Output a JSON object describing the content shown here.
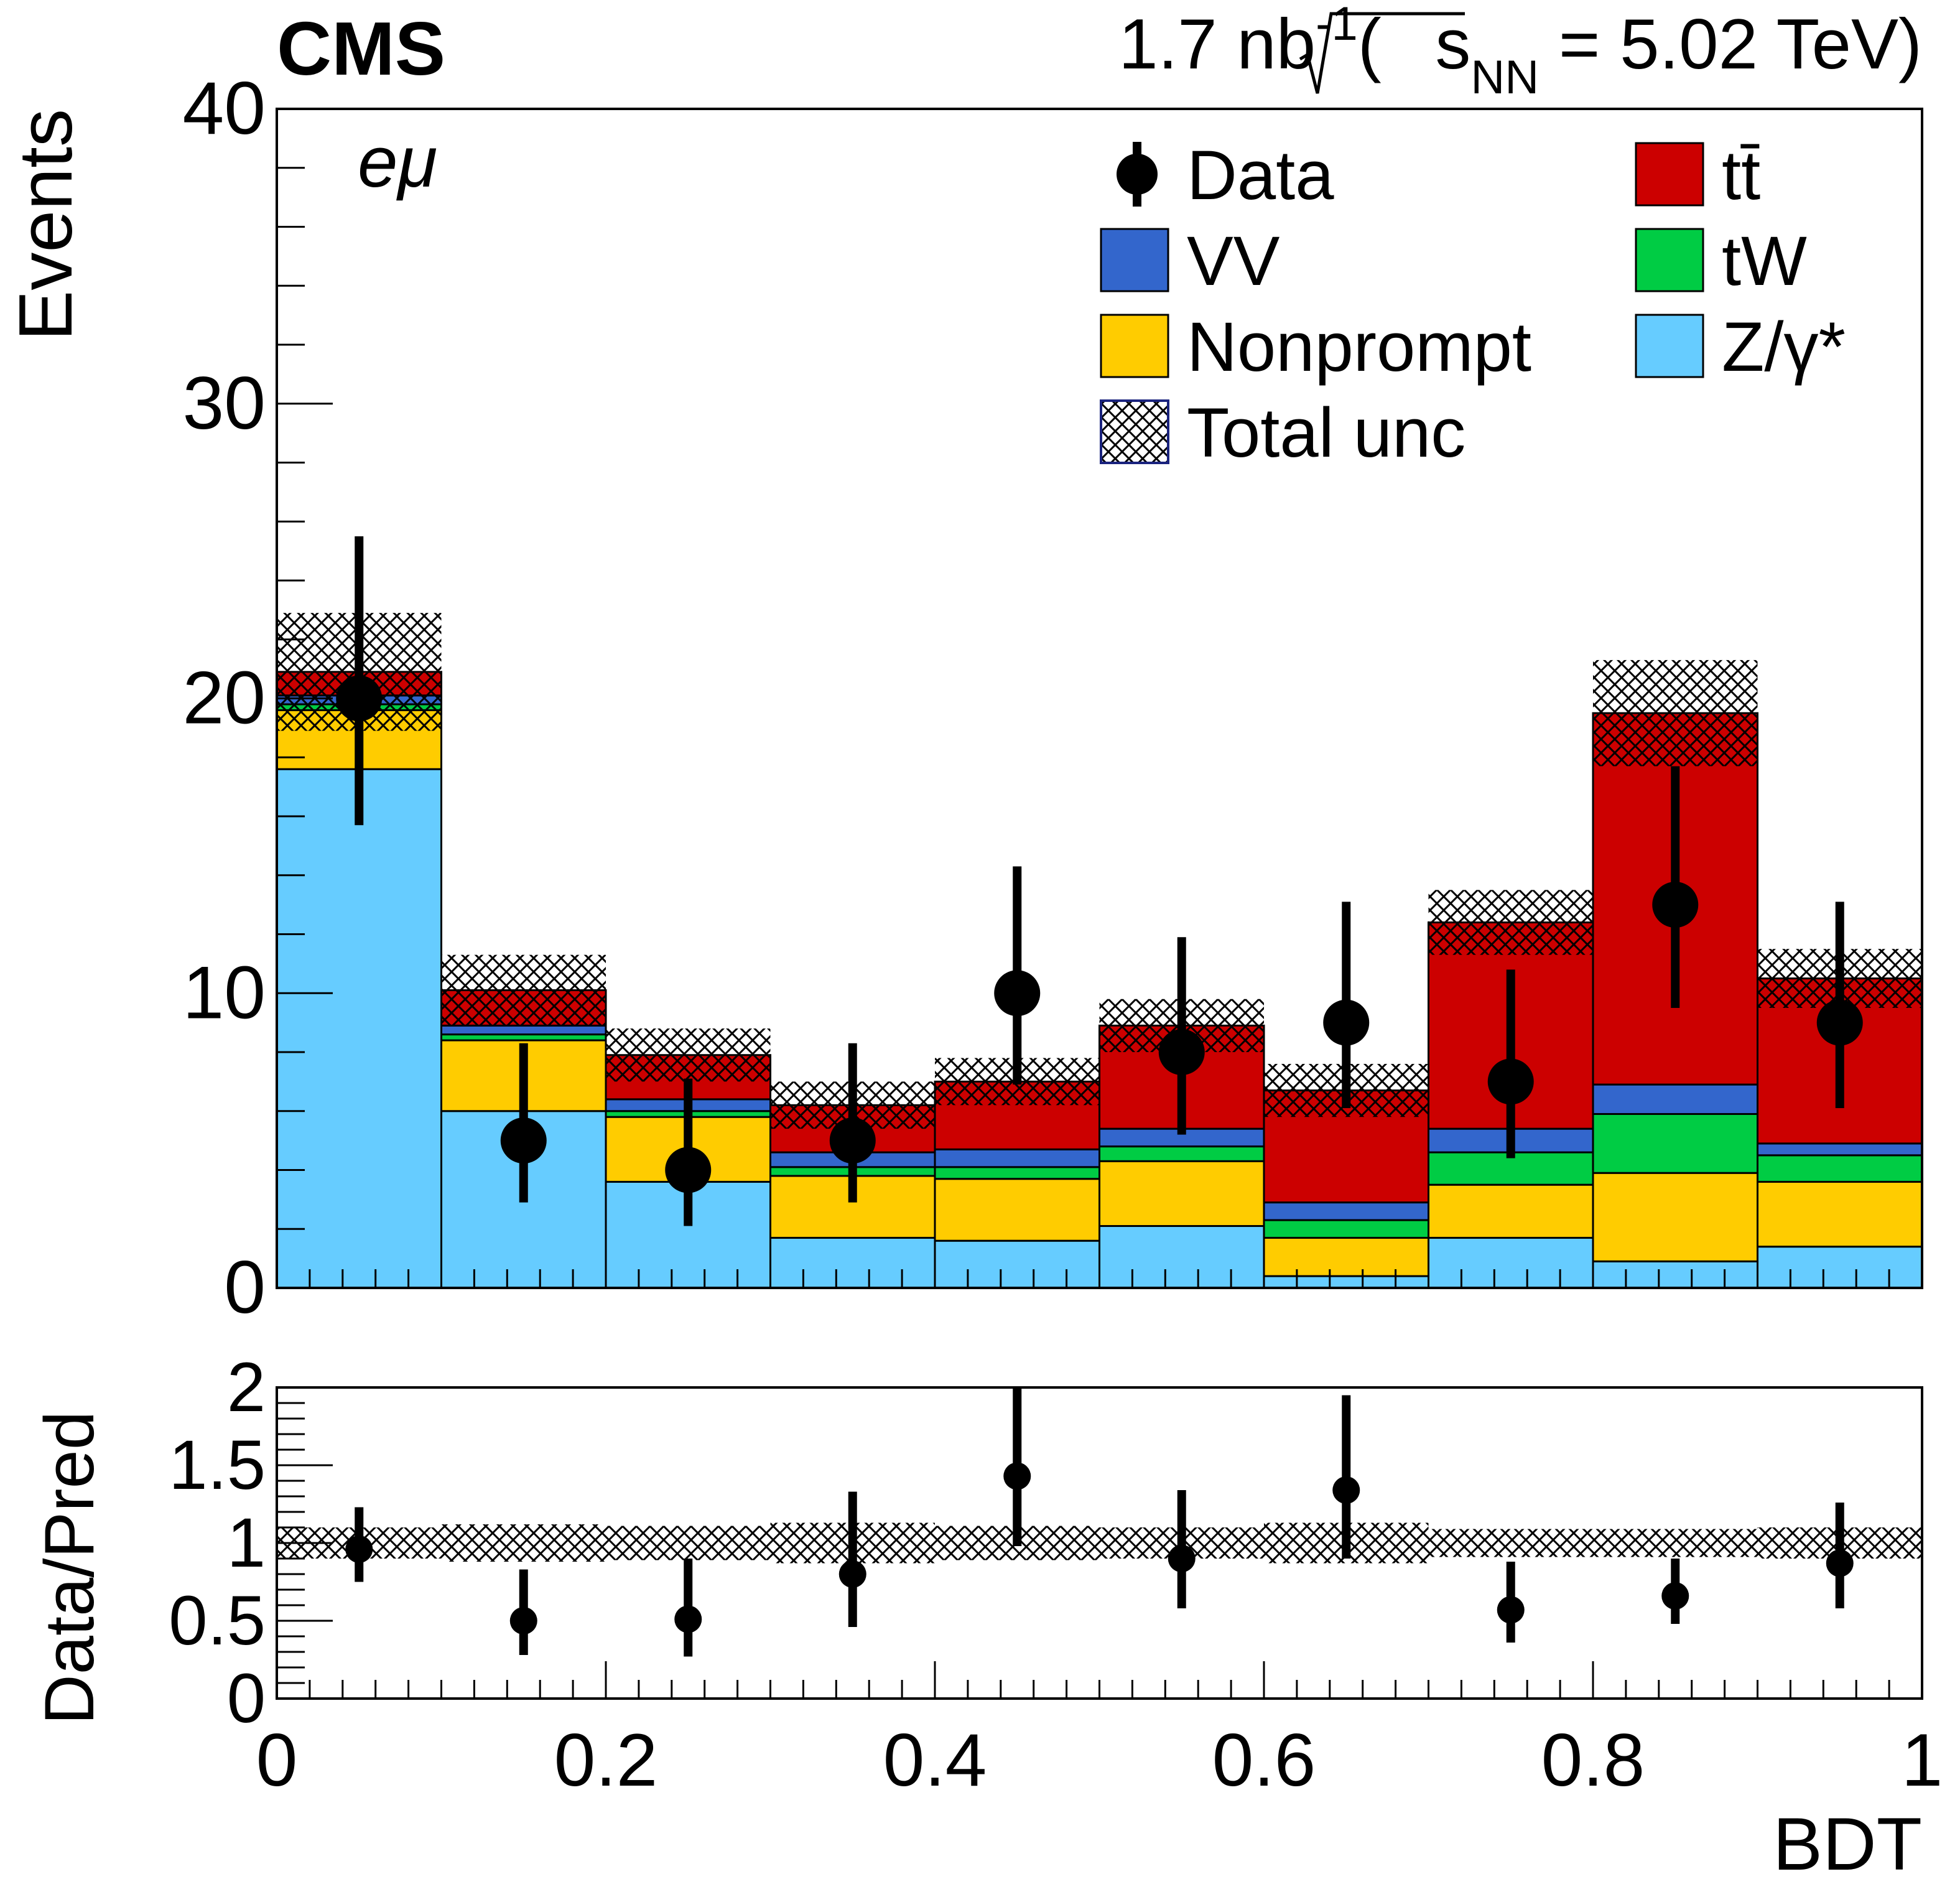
{
  "header": {
    "experiment": "CMS",
    "lumi_value": "1.7 nb",
    "lumi_exp": "-1",
    "energy_open": "(",
    "energy_s": "s",
    "energy_sub": "NN",
    "energy_value": " = 5.02 TeV)"
  },
  "channel": "eμ",
  "colors": {
    "ttbar": "#cc0000",
    "tW": "#00cc44",
    "VV": "#3366cc",
    "nonprompt": "#ffcc00",
    "zgamma": "#66ccff",
    "data": "#000000"
  },
  "legend": [
    {
      "key": "data",
      "label": "Data"
    },
    {
      "key": "ttbar",
      "label": "tt̄"
    },
    {
      "key": "VV",
      "label": "VV"
    },
    {
      "key": "tW",
      "label": "tW"
    },
    {
      "key": "nonprompt",
      "label": "Nonprompt"
    },
    {
      "key": "zgamma",
      "label": "Z/γ*"
    },
    {
      "key": "unc",
      "label": "Total unc"
    }
  ],
  "chart_data": [
    {
      "type": "bar",
      "stacked": true,
      "title": "",
      "xlabel": "BDT",
      "ylabel": "Events",
      "xlim": [
        0,
        1
      ],
      "ylim": [
        0,
        40
      ],
      "bin_edges": [
        0,
        0.1,
        0.2,
        0.3,
        0.4,
        0.5,
        0.6,
        0.7,
        0.8,
        0.9,
        1.0
      ],
      "y_ticks": [
        0,
        10,
        20,
        30,
        40
      ],
      "series": [
        {
          "name": "Z/γ*",
          "key": "zgamma",
          "values": [
            17.6,
            6.0,
            3.6,
            1.7,
            1.6,
            2.1,
            0.4,
            1.7,
            0.9,
            1.4
          ]
        },
        {
          "name": "Nonprompt",
          "key": "nonprompt",
          "values": [
            2.0,
            2.4,
            2.2,
            2.1,
            2.1,
            2.2,
            1.3,
            1.8,
            3.0,
            2.2
          ]
        },
        {
          "name": "tW",
          "key": "tW",
          "values": [
            0.2,
            0.2,
            0.2,
            0.3,
            0.4,
            0.5,
            0.6,
            1.1,
            2.0,
            0.9
          ]
        },
        {
          "name": "VV",
          "key": "VV",
          "values": [
            0.3,
            0.3,
            0.4,
            0.5,
            0.6,
            0.6,
            0.6,
            0.8,
            1.0,
            0.4
          ]
        },
        {
          "name": "tt̄",
          "key": "ttbar",
          "values": [
            0.8,
            1.2,
            1.5,
            1.6,
            2.3,
            3.5,
            3.8,
            7.0,
            12.6,
            5.6
          ]
        }
      ],
      "total_unc": [
        2.0,
        1.2,
        0.9,
        0.8,
        0.8,
        0.9,
        0.9,
        1.1,
        1.8,
        1.0
      ],
      "data": {
        "x": [
          0.05,
          0.15,
          0.25,
          0.35,
          0.45,
          0.55,
          0.65,
          0.75,
          0.85,
          0.95
        ],
        "y": [
          20,
          5,
          4,
          5,
          10,
          8,
          9,
          7,
          13,
          9
        ],
        "err_low": [
          4.3,
          2.1,
          1.9,
          2.1,
          3.1,
          2.8,
          2.9,
          2.6,
          3.5,
          2.9
        ],
        "err_high": [
          5.5,
          3.3,
          3.1,
          3.3,
          4.3,
          3.9,
          4.1,
          3.8,
          4.7,
          4.1
        ]
      }
    },
    {
      "type": "scatter",
      "xlabel": "BDT",
      "ylabel": "Data/Pred",
      "xlim": [
        0,
        1
      ],
      "ylim": [
        0,
        2
      ],
      "x_ticks": [
        0,
        0.2,
        0.4,
        0.6,
        0.8,
        1
      ],
      "x_tick_labels": [
        "0",
        "0.2",
        "0.4",
        "0.6",
        "0.8",
        "1"
      ],
      "y_ticks": [
        0,
        0.5,
        1,
        1.5,
        2
      ],
      "y_tick_labels": [
        "0",
        "0.5",
        "1",
        "1.5",
        "2"
      ],
      "ratio": {
        "x": [
          0.05,
          0.15,
          0.25,
          0.35,
          0.45,
          0.55,
          0.65,
          0.75,
          0.85,
          0.95
        ],
        "y": [
          0.96,
          0.5,
          0.51,
          0.8,
          1.43,
          0.9,
          1.34,
          0.57,
          0.66,
          0.87
        ],
        "err_low": [
          0.21,
          0.22,
          0.24,
          0.34,
          0.45,
          0.32,
          0.44,
          0.21,
          0.18,
          0.29
        ],
        "err_high": [
          0.27,
          0.33,
          0.39,
          0.53,
          0.62,
          0.44,
          0.61,
          0.31,
          0.24,
          0.39
        ]
      },
      "unc_band": [
        0.1,
        0.12,
        0.11,
        0.13,
        0.11,
        0.1,
        0.13,
        0.09,
        0.09,
        0.1
      ]
    }
  ]
}
